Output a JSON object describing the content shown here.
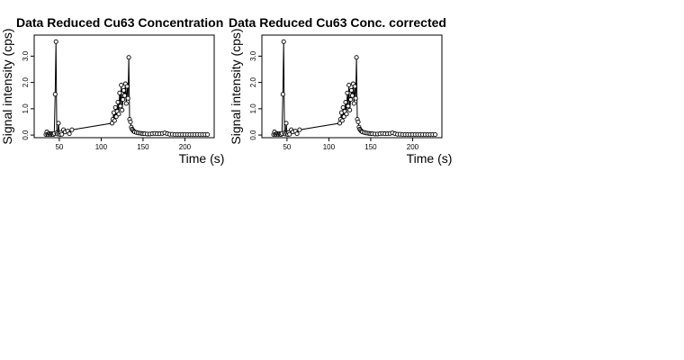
{
  "chart_data": [
    {
      "type": "scatter",
      "title": "Data Reduced Cu63 Concentration",
      "xlabel": "Time (s)",
      "ylabel": "Signal intensity (cps)",
      "xlim": [
        20,
        235
      ],
      "ylim": [
        -0.1,
        3.8
      ],
      "xticks": [
        50,
        100,
        150,
        200
      ],
      "yticks": [
        0.0,
        1.0,
        2.0,
        3.0
      ],
      "grid": false,
      "series": [
        {
          "style": "points-and-lines",
          "x": [
            34,
            35,
            36,
            37,
            38,
            39,
            40,
            41,
            42,
            43,
            44,
            45,
            46,
            47,
            48,
            49,
            50,
            51,
            52,
            53,
            55,
            57,
            60,
            62,
            65,
            113,
            114,
            115,
            116,
            117,
            118,
            119,
            120,
            121,
            122,
            123,
            124,
            125,
            126,
            127,
            128,
            129,
            130,
            131,
            132,
            133,
            134,
            135,
            136,
            137,
            138,
            139,
            140,
            142,
            144,
            146,
            148,
            150,
            152,
            155,
            158,
            161,
            164,
            167,
            170,
            173,
            176,
            179,
            182,
            185,
            188,
            191,
            194,
            197,
            200,
            203,
            206,
            209,
            212,
            215,
            218,
            221,
            224,
            227
          ],
          "y": [
            0.02,
            0.12,
            0.03,
            0.02,
            0.06,
            0.04,
            0.02,
            0.05,
            0.03,
            0.02,
            0.06,
            1.55,
            3.55,
            0.08,
            0.04,
            0.45,
            0.06,
            0.02,
            0.1,
            0.03,
            0.2,
            0.12,
            0.15,
            0.05,
            0.2,
            0.45,
            0.6,
            0.85,
            0.55,
            1.05,
            0.7,
            0.9,
            1.25,
            0.8,
            1.6,
            1.1,
            1.9,
            0.95,
            1.35,
            1.7,
            1.5,
            1.95,
            1.2,
            1.85,
            1.4,
            2.95,
            0.6,
            0.5,
            0.3,
            0.22,
            0.18,
            0.14,
            0.12,
            0.1,
            0.08,
            0.07,
            0.06,
            0.05,
            0.05,
            0.04,
            0.04,
            0.05,
            0.06,
            0.05,
            0.05,
            0.06,
            0.08,
            0.05,
            0.03,
            0.03,
            0.02,
            0.02,
            0.02,
            0.02,
            0.02,
            0.02,
            0.02,
            0.02,
            0.02,
            0.02,
            0.02,
            0.02,
            0.02,
            0.02
          ]
        }
      ]
    },
    {
      "type": "scatter",
      "title": "Data Reduced Cu63 Conc. corrected",
      "xlabel": "Time (s)",
      "ylabel": "Signal intensity (cps)",
      "xlim": [
        20,
        235
      ],
      "ylim": [
        -0.1,
        3.8
      ],
      "xticks": [
        50,
        100,
        150,
        200
      ],
      "yticks": [
        0.0,
        1.0,
        2.0,
        3.0
      ],
      "grid": false,
      "series": [
        {
          "style": "points-and-lines",
          "x": [
            34,
            35,
            36,
            37,
            38,
            39,
            40,
            41,
            42,
            43,
            44,
            45,
            46,
            47,
            48,
            49,
            50,
            51,
            52,
            53,
            55,
            57,
            60,
            62,
            65,
            113,
            114,
            115,
            116,
            117,
            118,
            119,
            120,
            121,
            122,
            123,
            124,
            125,
            126,
            127,
            128,
            129,
            130,
            131,
            132,
            133,
            134,
            135,
            136,
            137,
            138,
            139,
            140,
            142,
            144,
            146,
            148,
            150,
            152,
            155,
            158,
            161,
            164,
            167,
            170,
            173,
            176,
            179,
            182,
            185,
            188,
            191,
            194,
            197,
            200,
            203,
            206,
            209,
            212,
            215,
            218,
            221,
            224,
            227
          ],
          "y": [
            0.02,
            0.12,
            0.03,
            0.02,
            0.06,
            0.04,
            0.02,
            0.05,
            0.03,
            0.02,
            0.06,
            1.55,
            3.55,
            0.08,
            0.04,
            0.45,
            0.06,
            0.02,
            0.1,
            0.03,
            0.2,
            0.12,
            0.15,
            0.05,
            0.2,
            0.45,
            0.6,
            0.85,
            0.55,
            1.05,
            0.7,
            0.9,
            1.25,
            0.8,
            1.6,
            1.1,
            1.9,
            0.95,
            1.35,
            1.7,
            1.5,
            1.95,
            1.2,
            1.85,
            1.4,
            2.95,
            0.6,
            0.5,
            0.3,
            0.22,
            0.18,
            0.14,
            0.12,
            0.1,
            0.08,
            0.07,
            0.06,
            0.05,
            0.05,
            0.04,
            0.04,
            0.05,
            0.06,
            0.05,
            0.05,
            0.06,
            0.08,
            0.05,
            0.03,
            0.03,
            0.02,
            0.02,
            0.02,
            0.02,
            0.02,
            0.02,
            0.02,
            0.02,
            0.02,
            0.02,
            0.02,
            0.02,
            0.02,
            0.02
          ]
        }
      ]
    }
  ]
}
